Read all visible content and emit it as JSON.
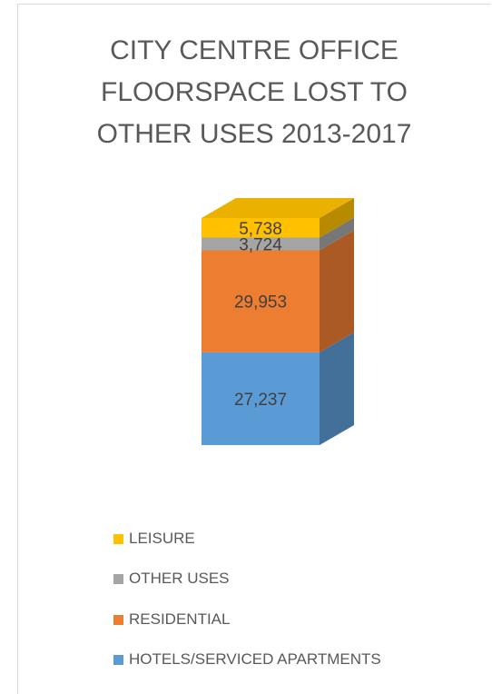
{
  "chart_data": {
    "type": "bar",
    "subtype": "stacked-3d-column",
    "title_lines": [
      "CITY CENTRE OFFICE",
      "FLOORSPACE LOST TO",
      "OTHER USES 2013-2017"
    ],
    "categories": [
      ""
    ],
    "series": [
      {
        "name": "HOTELS/SERVICED APARTMENTS",
        "values": [
          27237
        ],
        "label": "27,237",
        "color": "#5b9bd5"
      },
      {
        "name": "RESIDENTIAL",
        "values": [
          29953
        ],
        "label": "29,953",
        "color": "#ed7d31"
      },
      {
        "name": "OTHER USES",
        "values": [
          3724
        ],
        "label": "3,724",
        "color": "#a5a5a5"
      },
      {
        "name": "LEISURE",
        "values": [
          5738
        ],
        "label": "5,738",
        "color": "#ffc000"
      }
    ],
    "legend_order": [
      "LEISURE",
      "OTHER USES",
      "RESIDENTIAL",
      "HOTELS/SERVICED APARTMENTS"
    ],
    "legend_position": "bottom",
    "grid": false,
    "axes_visible": false
  }
}
